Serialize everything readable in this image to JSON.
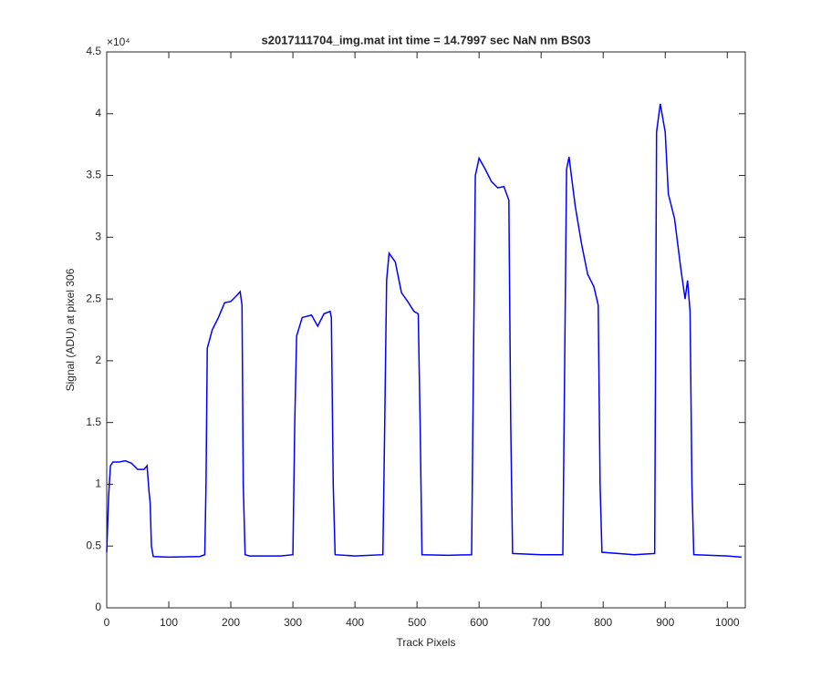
{
  "chart_data": {
    "type": "line",
    "title": "s2017111704_img.mat int time = 14.7997 sec  NaN nm BS03",
    "x_label": "Track Pixels",
    "y_label": "Signal (ADU) at pixel 306",
    "y_exponent_label": "×10⁴",
    "xlim": [
      0,
      1029
    ],
    "ylim": [
      0,
      45000
    ],
    "xticks": [
      0,
      100,
      200,
      300,
      400,
      500,
      600,
      700,
      800,
      900,
      1000
    ],
    "yticks": [
      {
        "value": 0,
        "label": "0"
      },
      {
        "value": 5000,
        "label": "0.5"
      },
      {
        "value": 10000,
        "label": "1"
      },
      {
        "value": 15000,
        "label": "1.5"
      },
      {
        "value": 20000,
        "label": "2"
      },
      {
        "value": 25000,
        "label": "2.5"
      },
      {
        "value": 30000,
        "label": "3"
      },
      {
        "value": 35000,
        "label": "3.5"
      },
      {
        "value": 40000,
        "label": "4"
      },
      {
        "value": 45000,
        "label": "4.5"
      }
    ],
    "grid": false,
    "x": [
      0,
      3,
      6,
      10,
      20,
      30,
      40,
      50,
      60,
      65,
      68,
      70,
      72,
      75,
      100,
      150,
      158,
      160,
      162,
      170,
      180,
      190,
      200,
      210,
      215,
      218,
      220,
      223,
      230,
      280,
      300,
      303,
      306,
      315,
      330,
      340,
      350,
      360,
      362,
      365,
      368,
      400,
      445,
      448,
      451,
      455,
      465,
      475,
      485,
      495,
      502,
      505,
      508,
      550,
      588,
      591,
      594,
      600,
      610,
      620,
      630,
      640,
      648,
      651,
      654,
      700,
      735,
      738,
      741,
      745,
      755,
      765,
      775,
      785,
      792,
      795,
      798,
      850,
      883,
      886,
      892,
      900,
      905,
      915,
      925,
      932,
      936,
      940,
      943,
      946,
      1000,
      1023
    ],
    "series": [
      {
        "name": "Signal",
        "color": "#0000ff",
        "values": [
          4500,
          9000,
          11500,
          11800,
          11800,
          11900,
          11700,
          11200,
          11200,
          11500,
          9500,
          8500,
          5000,
          4150,
          4100,
          4150,
          4300,
          10000,
          21000,
          22500,
          23500,
          24700,
          24800,
          25300,
          25600,
          24500,
          10000,
          4300,
          4200,
          4200,
          4300,
          15000,
          22000,
          23500,
          23700,
          22800,
          23800,
          24000,
          23500,
          10000,
          4300,
          4200,
          4300,
          15000,
          26500,
          28700,
          28000,
          25500,
          24800,
          24000,
          23800,
          15000,
          4300,
          4250,
          4300,
          20000,
          35000,
          36400,
          35500,
          34500,
          34000,
          34100,
          33000,
          15000,
          4400,
          4300,
          4300,
          20000,
          35500,
          36500,
          32500,
          29500,
          27000,
          26000,
          24500,
          10000,
          4500,
          4300,
          4400,
          38500,
          40800,
          38500,
          33500,
          31500,
          27500,
          25000,
          26500,
          24000,
          10000,
          4300,
          4200,
          4100
        ]
      }
    ]
  }
}
